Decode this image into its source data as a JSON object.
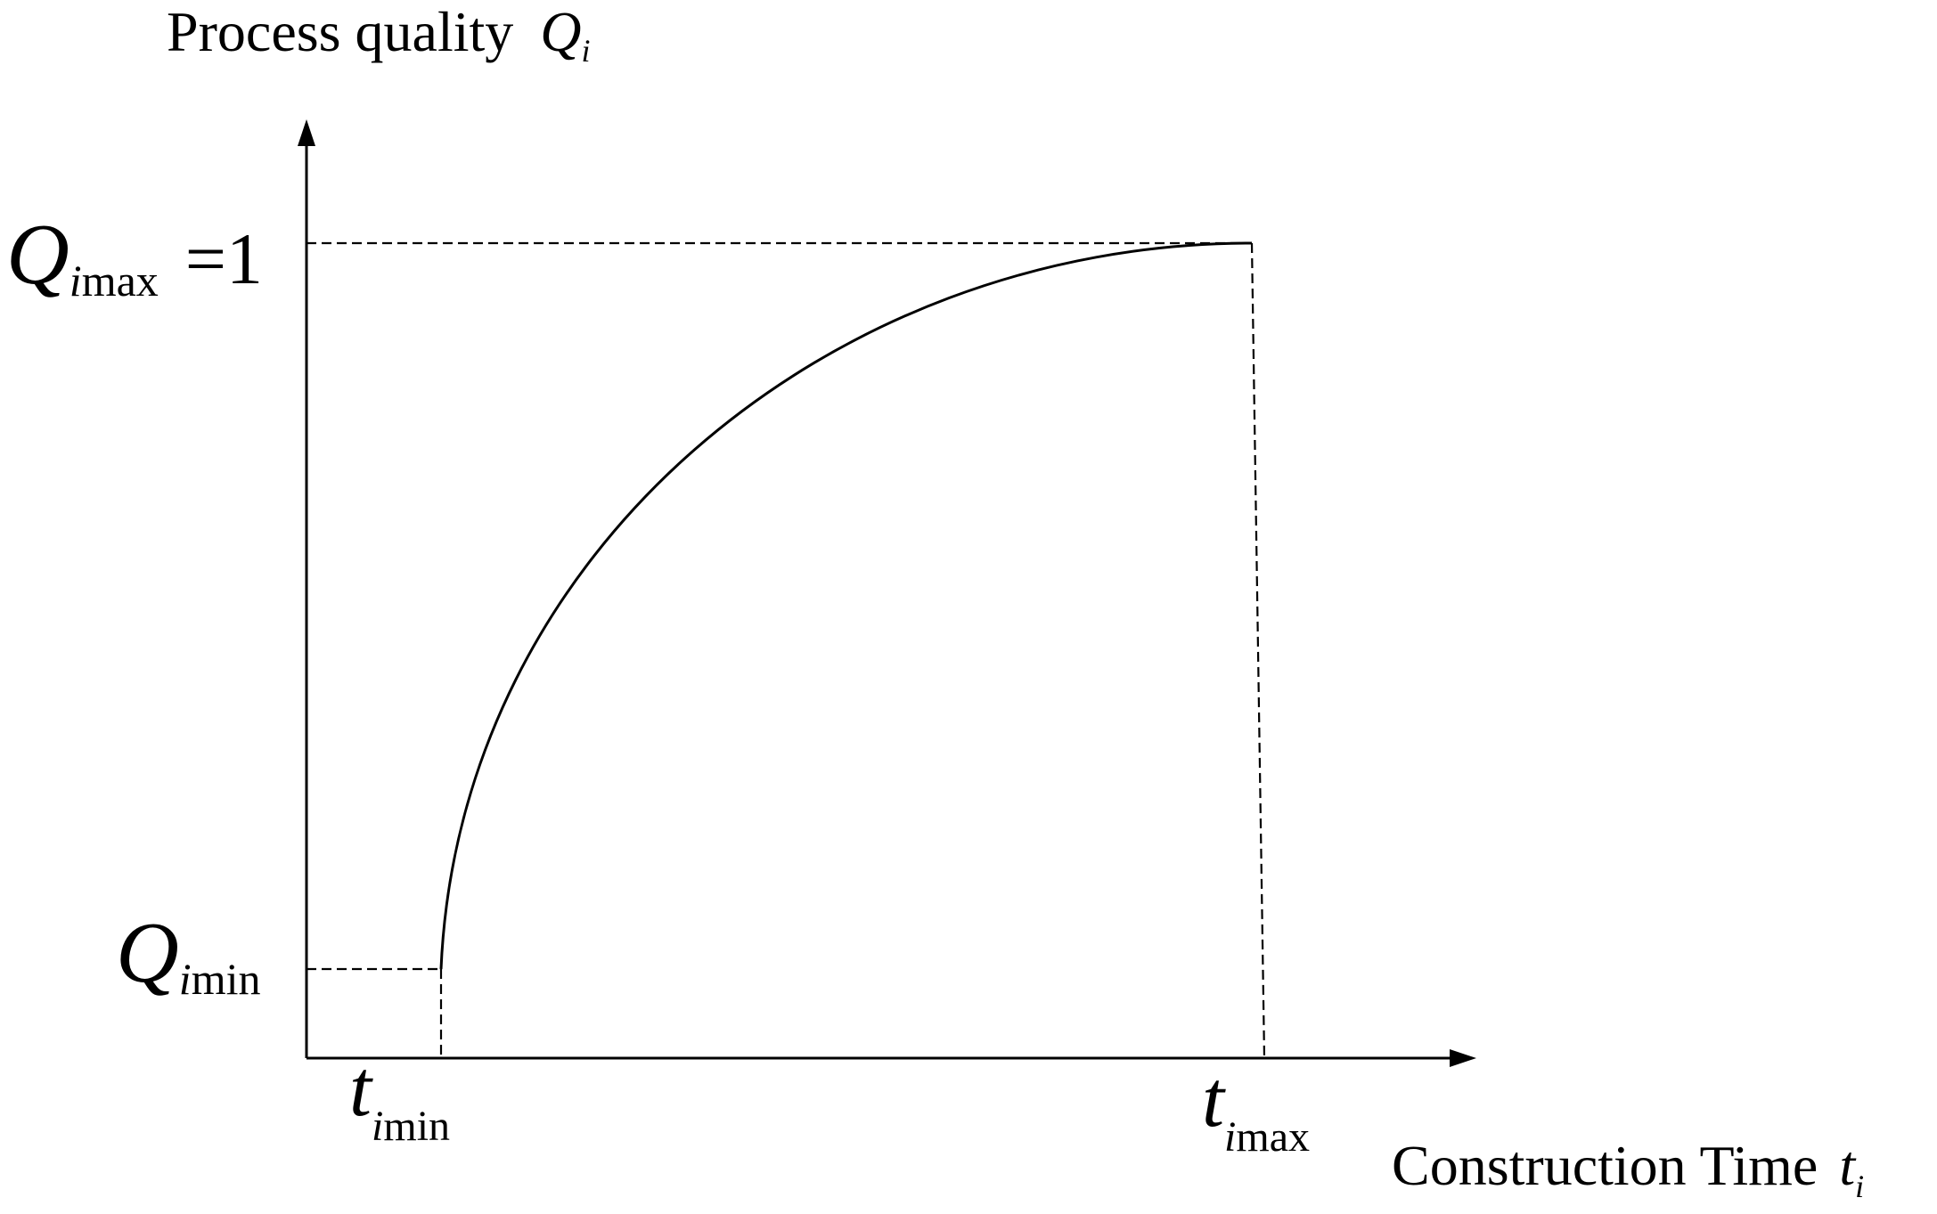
{
  "y_axis_label": {
    "text": "Process quality",
    "symbol": "Q",
    "subscript": "i"
  },
  "x_axis_label": {
    "text": "Construction Time",
    "symbol": "t",
    "subscript": "i"
  },
  "y_labels": [
    {
      "symbol": "Q",
      "subscript": "i",
      "suffix": "max",
      "equation": "=1"
    },
    {
      "symbol": "Q",
      "subscript": "i",
      "suffix": "min"
    }
  ],
  "x_labels": [
    {
      "symbol": "t",
      "subscript": "i",
      "suffix": "min"
    },
    {
      "symbol": "t",
      "subscript": "i",
      "suffix": "max"
    }
  ]
}
